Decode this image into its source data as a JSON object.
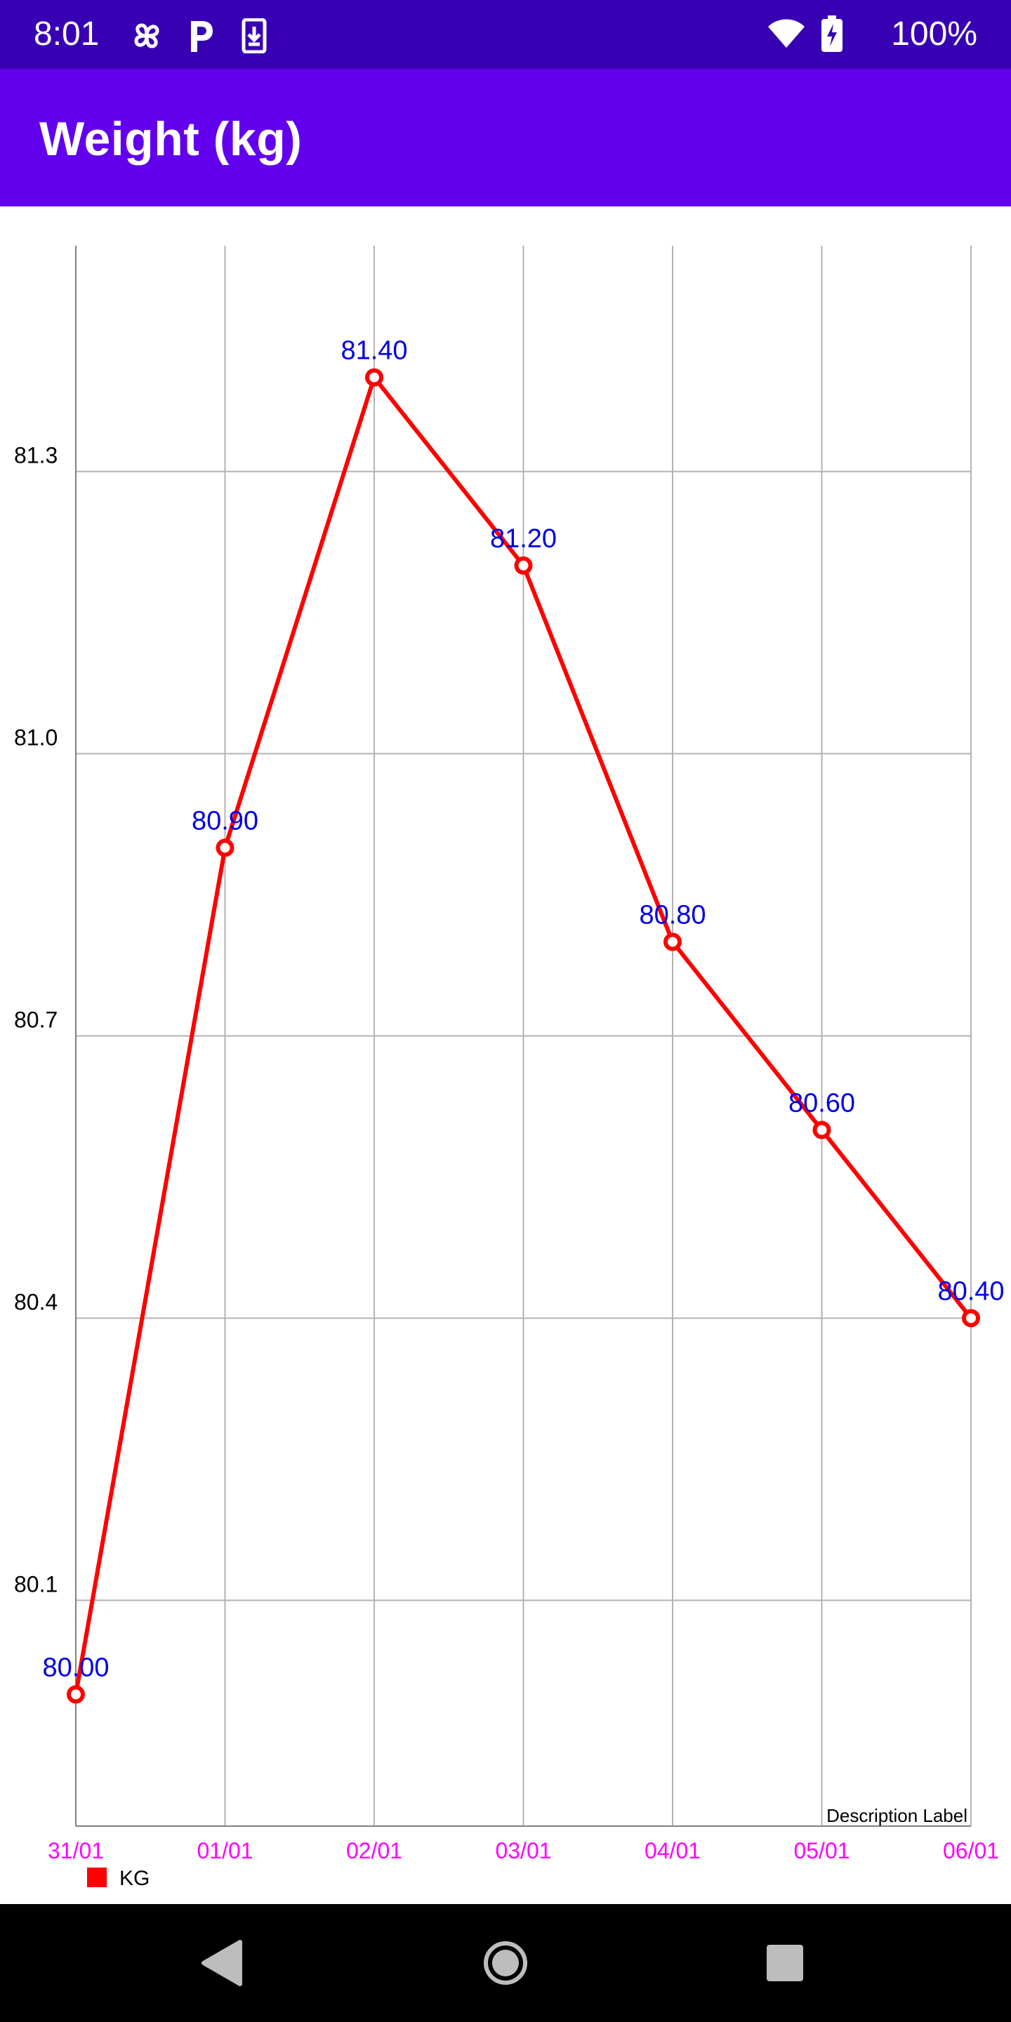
{
  "status_bar": {
    "time": "8:01",
    "battery": "100%",
    "icons": [
      "pinwheel-icon",
      "parking-icon",
      "download-icon",
      "wifi-icon",
      "battery-charging-icon"
    ]
  },
  "app_bar": {
    "title": "Weight (kg)"
  },
  "chart_data": {
    "type": "line",
    "categories": [
      "31/01",
      "01/01",
      "02/01",
      "03/01",
      "04/01",
      "05/01",
      "06/01"
    ],
    "series": [
      {
        "name": "KG",
        "values": [
          80.0,
          80.9,
          81.4,
          81.2,
          80.8,
          80.6,
          80.4
        ],
        "color": "#ff0000"
      }
    ],
    "value_labels": [
      "80.00",
      "80.90",
      "81.40",
      "81.20",
      "80.80",
      "80.60",
      "80.40"
    ],
    "yticks": [
      80.1,
      80.4,
      80.7,
      81.0,
      81.3
    ],
    "ytick_labels": [
      "80.1",
      "80.4",
      "80.7",
      "81.0",
      "81.3"
    ],
    "ylim": [
      79.86,
      81.54
    ],
    "grid": true,
    "legend_position": "bottom-left",
    "description": "Description Label",
    "colors": {
      "line": "#ff0000",
      "value_label": "#0000e6",
      "x_tick_label": "#ff00ff",
      "grid": "#b3b3b3",
      "y_tick_label": "#000000"
    }
  },
  "nav_bar": {
    "icons": [
      "back-icon",
      "home-icon",
      "recents-icon"
    ]
  }
}
